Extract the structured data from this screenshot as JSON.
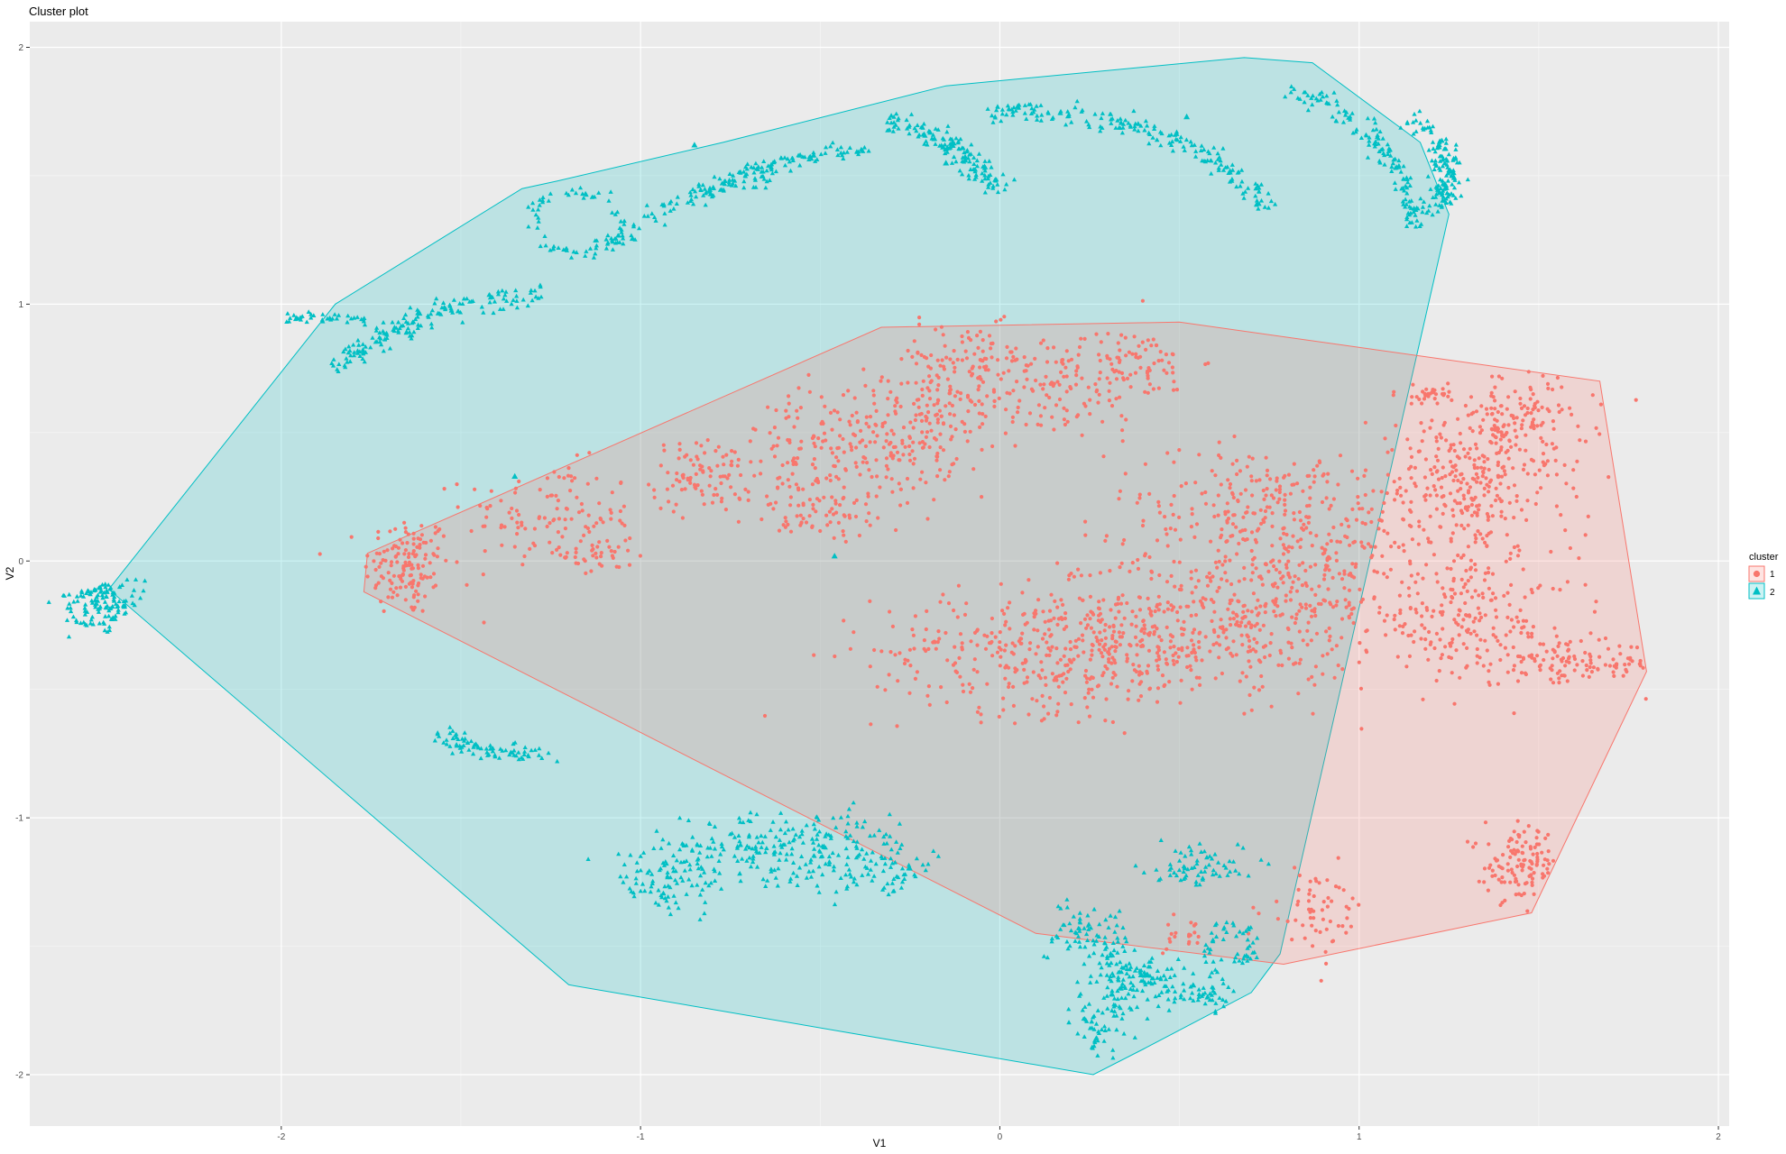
{
  "chart_data": {
    "type": "scatter",
    "title": "Cluster plot",
    "xlabel": "V1",
    "ylabel": "V2",
    "xlim": [
      -2.7,
      2.03
    ],
    "ylim": [
      -2.2,
      2.1
    ],
    "x_ticks": [
      -2,
      -1,
      0,
      1,
      2
    ],
    "y_ticks": [
      -2,
      -1,
      0,
      1,
      2
    ],
    "x_tick_labels": [
      "-2",
      "-1",
      "0",
      "1",
      "2"
    ],
    "y_tick_labels": [
      "-2",
      "-1",
      "0",
      "1",
      "2"
    ],
    "grid": true,
    "legend": {
      "title": "cluster",
      "position": "right",
      "entries": [
        "1",
        "2"
      ]
    },
    "series": [
      {
        "name": "1",
        "marker": "circle",
        "color": "#F8766D",
        "hull": [
          [
            -1.76,
            0.03
          ],
          [
            -0.33,
            0.91
          ],
          [
            0.5,
            0.93
          ],
          [
            1.67,
            0.7
          ],
          [
            1.8,
            -0.43
          ],
          [
            1.48,
            -1.37
          ],
          [
            0.79,
            -1.57
          ],
          [
            0.1,
            -1.45
          ],
          [
            -1.77,
            -0.12
          ]
        ],
        "clusters": [
          {
            "cx": -1.65,
            "cy": -0.02,
            "sx": 0.06,
            "sy": 0.1,
            "n": 140
          },
          {
            "cx": -1.25,
            "cy": 0.18,
            "sx": 0.12,
            "sy": 0.1,
            "n": 110
          },
          {
            "cx": -1.12,
            "cy": 0.03,
            "sx": 0.05,
            "sy": 0.05,
            "n": 40
          },
          {
            "cx": -0.83,
            "cy": 0.33,
            "sx": 0.07,
            "sy": 0.07,
            "n": 90
          },
          {
            "cx": -0.52,
            "cy": 0.42,
            "sx": 0.1,
            "sy": 0.12,
            "n": 120
          },
          {
            "cx": -0.29,
            "cy": 0.45,
            "sx": 0.08,
            "sy": 0.12,
            "n": 120
          },
          {
            "cx": -0.16,
            "cy": 0.55,
            "sx": 0.08,
            "sy": 0.1,
            "n": 90
          },
          {
            "cx": -0.1,
            "cy": 0.78,
            "sx": 0.12,
            "sy": 0.07,
            "n": 90
          },
          {
            "cx": 0.15,
            "cy": 0.67,
            "sx": 0.15,
            "sy": 0.1,
            "n": 120
          },
          {
            "cx": 0.35,
            "cy": 0.78,
            "sx": 0.1,
            "sy": 0.06,
            "n": 80
          },
          {
            "cx": -0.5,
            "cy": 0.18,
            "sx": 0.1,
            "sy": 0.05,
            "n": 60
          },
          {
            "cx": 0.15,
            "cy": -0.35,
            "sx": 0.25,
            "sy": 0.12,
            "n": 380
          },
          {
            "cx": 0.55,
            "cy": -0.25,
            "sx": 0.22,
            "sy": 0.14,
            "n": 340
          },
          {
            "cx": 0.85,
            "cy": -0.1,
            "sx": 0.12,
            "sy": 0.15,
            "n": 170
          },
          {
            "cx": 0.75,
            "cy": 0.2,
            "sx": 0.22,
            "sy": 0.12,
            "n": 260
          },
          {
            "cx": 1.3,
            "cy": 0.3,
            "sx": 0.13,
            "sy": 0.15,
            "n": 300
          },
          {
            "cx": 1.45,
            "cy": 0.55,
            "sx": 0.1,
            "sy": 0.08,
            "n": 120
          },
          {
            "cx": 1.2,
            "cy": 0.65,
            "sx": 0.05,
            "sy": 0.02,
            "n": 30
          },
          {
            "cx": 1.3,
            "cy": -0.22,
            "sx": 0.15,
            "sy": 0.12,
            "n": 220
          },
          {
            "cx": 1.6,
            "cy": -0.4,
            "sx": 0.12,
            "sy": 0.04,
            "n": 110
          },
          {
            "cx": 1.45,
            "cy": -1.18,
            "sx": 0.05,
            "sy": 0.07,
            "n": 120
          },
          {
            "cx": 0.88,
            "cy": -1.36,
            "sx": 0.07,
            "sy": 0.08,
            "n": 60
          },
          {
            "cx": 0.5,
            "cy": -1.45,
            "sx": 0.05,
            "sy": 0.04,
            "n": 20
          }
        ]
      },
      {
        "name": "2",
        "marker": "triangle",
        "color": "#00BFC4",
        "hull": [
          [
            -2.48,
            -0.11
          ],
          [
            -1.85,
            1.0
          ],
          [
            -1.33,
            1.45
          ],
          [
            -1.23,
            1.48
          ],
          [
            -0.77,
            1.63
          ],
          [
            -0.15,
            1.85
          ],
          [
            0.68,
            1.96
          ],
          [
            0.87,
            1.94
          ],
          [
            1.17,
            1.63
          ],
          [
            1.25,
            1.35
          ],
          [
            0.78,
            -1.53
          ],
          [
            0.7,
            -1.68
          ],
          [
            0.4,
            -1.9
          ],
          [
            0.26,
            -2.0
          ],
          [
            -1.2,
            -1.65
          ]
        ],
        "arcs": [
          {
            "cx": -2.3,
            "cy": -0.02,
            "r": 0.25,
            "a0": 200,
            "a1": 235,
            "w": 0.05,
            "n": 130
          },
          {
            "cx": -1.2,
            "cy": 0.2,
            "r": 0.85,
            "a0": 95,
            "a1": 140,
            "w": 0.02,
            "n": 150
          },
          {
            "cx": -1.9,
            "cy": 0.4,
            "r": 0.55,
            "a0": 60,
            "a1": 100,
            "w": 0.01,
            "n": 50
          },
          {
            "cx": -1.18,
            "cy": 1.32,
            "r": 0.12,
            "a0": 0,
            "a1": 360,
            "w": 0.015,
            "n": 70
          },
          {
            "cx": -0.5,
            "cy": 0.7,
            "r": 0.8,
            "a0": 100,
            "a1": 140,
            "w": 0.02,
            "n": 90
          },
          {
            "cx": -0.35,
            "cy": 0.85,
            "r": 0.75,
            "a0": 90,
            "a1": 125,
            "w": 0.015,
            "n": 90
          },
          {
            "cx": -0.5,
            "cy": 1.2,
            "r": 0.55,
            "a0": 25,
            "a1": 70,
            "w": 0.02,
            "n": 150
          },
          {
            "cx": 0.1,
            "cy": 1.0,
            "r": 0.75,
            "a0": 30,
            "a1": 100,
            "w": 0.02,
            "n": 190
          },
          {
            "cx": 0.55,
            "cy": 1.3,
            "r": 0.6,
            "a0": 0,
            "a1": 65,
            "w": 0.02,
            "n": 140
          },
          {
            "cx": 0.95,
            "cy": 1.5,
            "r": 0.3,
            "a0": -20,
            "a1": 50,
            "w": 0.02,
            "n": 90
          },
          {
            "cx": 1.0,
            "cy": 1.5,
            "r": 0.25,
            "a0": -40,
            "a1": 30,
            "w": 0.02,
            "n": 50
          },
          {
            "cx": -0.6,
            "cy": -1.6,
            "r": 0.5,
            "a0": 45,
            "a1": 145,
            "w": 0.08,
            "n": 380
          },
          {
            "cx": 0.1,
            "cy": -1.65,
            "r": 0.25,
            "a0": -60,
            "a1": 80,
            "w": 0.05,
            "n": 210
          },
          {
            "cx": 0.55,
            "cy": -1.5,
            "r": 0.18,
            "a0": 200,
            "a1": 300,
            "w": 0.04,
            "n": 100
          },
          {
            "cx": -1.35,
            "cy": -0.45,
            "r": 0.3,
            "a0": 225,
            "a1": 290,
            "w": 0.02,
            "n": 80
          },
          {
            "cx": 0.55,
            "cy": -1.25,
            "r": 0.1,
            "a0": 0,
            "a1": 180,
            "w": 0.04,
            "n": 70
          },
          {
            "cx": 0.65,
            "cy": -1.5,
            "r": 0.06,
            "a0": 0,
            "a1": 360,
            "w": 0.02,
            "n": 50
          }
        ],
        "points": [
          [
            -0.46,
            0.02
          ],
          [
            -1.35,
            0.33
          ],
          [
            -0.85,
            1.62
          ],
          [
            0.05,
            1.77
          ],
          [
            0.52,
            1.73
          ],
          [
            -0.15,
            1.55
          ]
        ]
      }
    ]
  }
}
